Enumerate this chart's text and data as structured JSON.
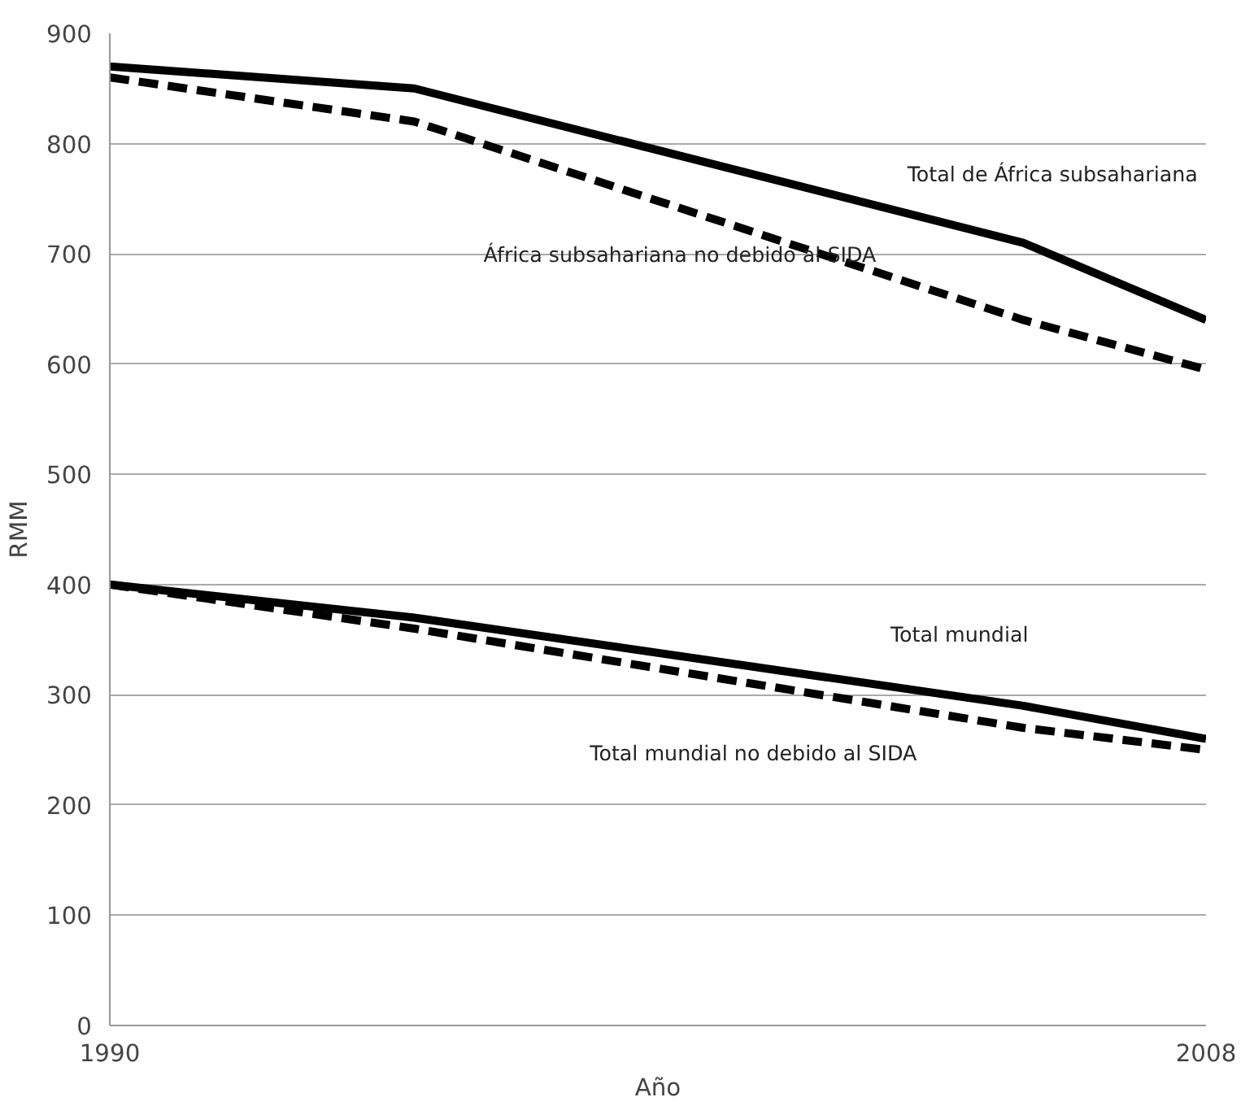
{
  "chart_data": {
    "type": "line",
    "xlabel": "Año",
    "ylabel": "RMM",
    "x": [
      1990,
      1995,
      2005,
      2008
    ],
    "series": [
      {
        "color": "#000000",
        "line_style": "solid",
        "values": [
          870,
          850,
          710,
          640
        ]
      },
      {
        "color": "#000000",
        "line_style": "dashed",
        "values": [
          860,
          820,
          640,
          595
        ]
      },
      {
        "color": "#000000",
        "line_style": "solid",
        "values": [
          400,
          370,
          290,
          260
        ]
      },
      {
        "color": "#000000",
        "line_style": "dashed",
        "values": [
          400,
          360,
          270,
          250
        ]
      }
    ],
    "annotations": [
      "Total de África subsahariana",
      "África subsahariana no debido al SIDA",
      "Total mundial",
      "Total mundial no debido al SIDA"
    ],
    "xlim": [
      1990,
      2008
    ],
    "xticks": [
      1990,
      2008
    ],
    "ylim": [
      0,
      900
    ],
    "yticks": [
      0,
      100,
      200,
      300,
      400,
      500,
      600,
      700,
      800,
      900
    ],
    "grid": "y",
    "marker": "none"
  }
}
